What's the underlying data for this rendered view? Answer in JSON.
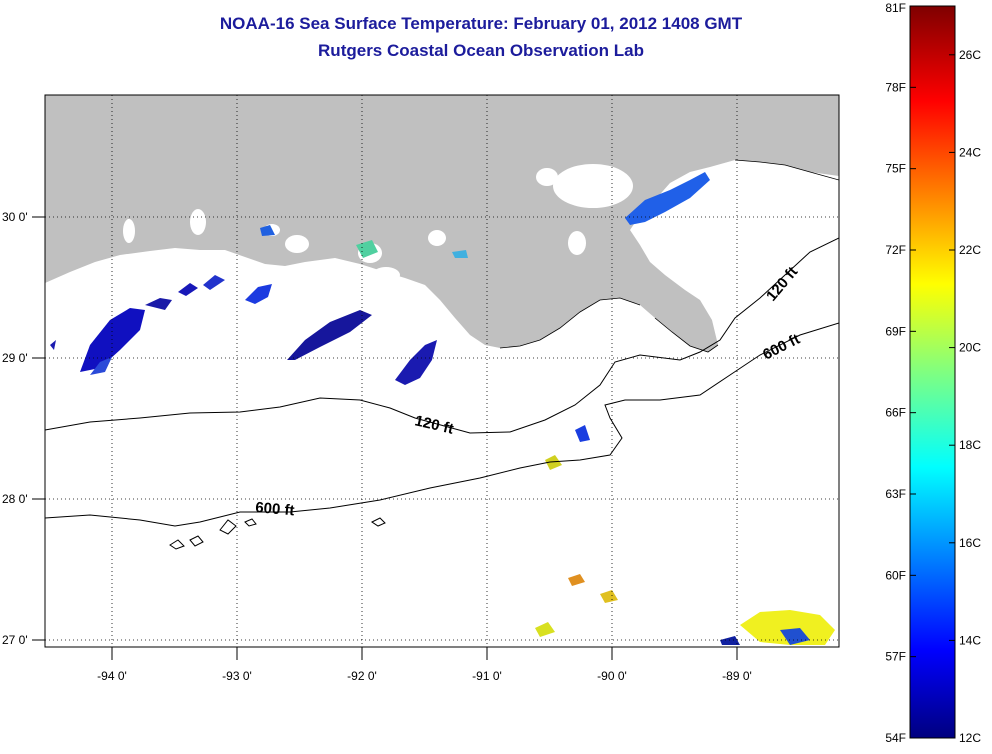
{
  "title": {
    "line1": "NOAA-16 Sea Surface Temperature:  February 01, 2012 1408 GMT",
    "line2": "Rutgers Coastal Ocean Observation Lab"
  },
  "map": {
    "lon_labels": [
      "-94 0'",
      "-93 0'",
      "-92 0'",
      "-91 0'",
      "-90 0'",
      "-89 0'"
    ],
    "lat_labels": [
      "30 0'",
      "29 0'",
      "28 0'",
      "27 0'"
    ],
    "contour_labels": [
      {
        "text": "120 ft",
        "rotate": 13
      },
      {
        "text": "600 ft",
        "rotate": 5
      },
      {
        "text": "120 ft",
        "rotate": -50
      },
      {
        "text": "600 ft",
        "rotate": -27
      }
    ],
    "colors": {
      "land": "#c0c0c0",
      "contour": "#000000",
      "grid": "#000000"
    }
  },
  "colorbar": {
    "fahrenheit_labels": [
      "81F",
      "78F",
      "75F",
      "72F",
      "69F",
      "66F",
      "63F",
      "60F",
      "57F",
      "54F"
    ],
    "celsius_labels": [
      "26C",
      "24C",
      "22C",
      "20C",
      "18C",
      "16C",
      "14C",
      "12C"
    ],
    "range_f": [
      54,
      81
    ],
    "range_c": [
      12,
      27
    ]
  }
}
